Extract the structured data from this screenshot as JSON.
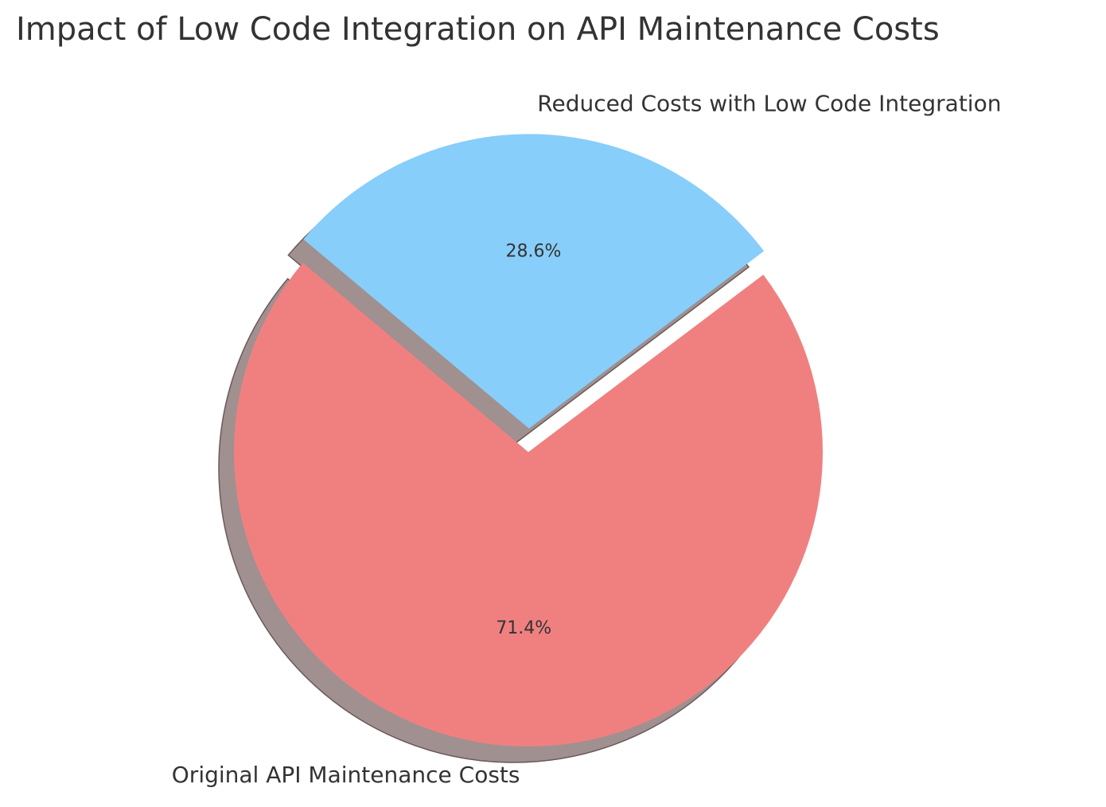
{
  "chart_data": {
    "type": "pie",
    "title": "Impact of Low Code Integration on API Maintenance Costs",
    "slices": [
      {
        "label": "Original API Maintenance Costs",
        "value": 71.4,
        "pct_label": "71.4%",
        "color": "#F08080",
        "explode": false
      },
      {
        "label": "Reduced Costs with Low Code Integration",
        "value": 28.6,
        "pct_label": "28.6%",
        "color": "#87CEFA",
        "explode": true
      }
    ],
    "start_angle_deg": 140,
    "shadow": true,
    "shadow_color": "#A09090"
  }
}
